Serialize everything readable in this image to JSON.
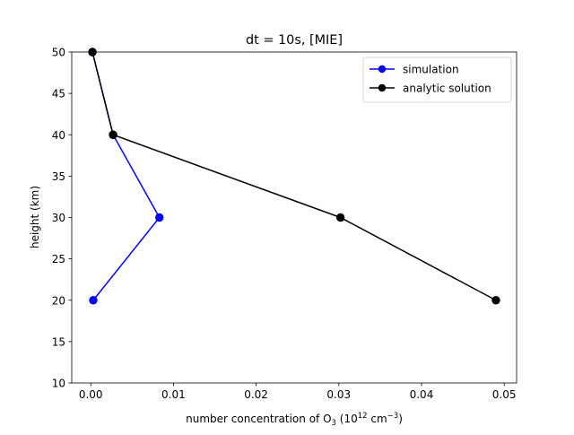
{
  "chart_data": {
    "type": "line",
    "title": "dt = 10s, [MIE]",
    "xlabel": {
      "prefix": "number concentration of O",
      "sub": "3",
      "mid": " (10",
      "sup1": "12",
      "mid2": " cm",
      "sup2": "−3",
      "suffix": ")"
    },
    "ylabel": "height (km)",
    "xlim": [
      -0.0023,
      0.0515
    ],
    "ylim": [
      10,
      50
    ],
    "xticks": [
      0.0,
      0.01,
      0.02,
      0.03,
      0.04,
      0.05
    ],
    "xtick_labels": [
      "0.00",
      "0.01",
      "0.02",
      "0.03",
      "0.04",
      "0.05"
    ],
    "yticks": [
      10,
      15,
      20,
      25,
      30,
      35,
      40,
      45,
      50
    ],
    "ytick_labels": [
      "10",
      "15",
      "20",
      "25",
      "30",
      "35",
      "40",
      "45",
      "50"
    ],
    "grid": false,
    "legend_position": "top-right",
    "series": [
      {
        "name": "simulation",
        "color": "#0000ff",
        "marker": "circle",
        "x": [
          0.0003,
          0.0083,
          0.0027,
          0.0002
        ],
        "y": [
          20,
          30,
          40,
          50
        ]
      },
      {
        "name": "analytic solution",
        "color": "#000000",
        "marker": "circle",
        "x": [
          0.049,
          0.0302,
          0.0027,
          0.0002
        ],
        "y": [
          20,
          30,
          40,
          50
        ]
      }
    ]
  }
}
